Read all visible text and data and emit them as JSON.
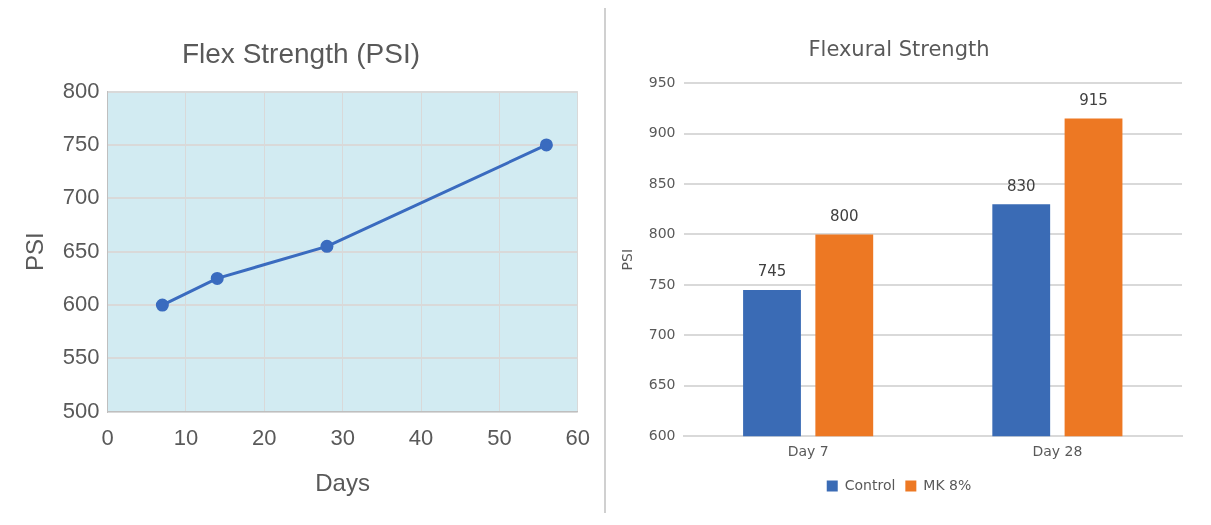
{
  "chart_data": [
    {
      "type": "line",
      "title": "Flex Strength (PSI)",
      "xlabel": "Days",
      "ylabel": "PSI",
      "x": [
        7,
        14,
        28,
        56
      ],
      "series": [
        {
          "color": "#3a6bbf",
          "values": [
            600,
            625,
            655,
            750
          ]
        }
      ],
      "xlim": [
        0,
        60
      ],
      "xticks": [
        0,
        10,
        20,
        30,
        40,
        50,
        60
      ],
      "ylim": [
        500,
        800
      ],
      "yticks": [
        500,
        550,
        600,
        650,
        700,
        750,
        800
      ],
      "grid": true,
      "marker": "circle",
      "legend": false
    },
    {
      "type": "bar",
      "title": "Flexural Strength",
      "ylabel": "PSI",
      "categories": [
        "Day 7",
        "Day 28"
      ],
      "series": [
        {
          "name": "Control",
          "color": "#3a6bb5",
          "values": [
            745,
            830
          ]
        },
        {
          "name": "MK 8%",
          "color": "#ed7823",
          "values": [
            800,
            915
          ]
        }
      ],
      "ylim": [
        600,
        950
      ],
      "yticks": [
        600,
        650,
        700,
        750,
        800,
        850,
        900,
        950
      ],
      "grid": "y",
      "data_labels": true,
      "legend": "bottom"
    }
  ]
}
